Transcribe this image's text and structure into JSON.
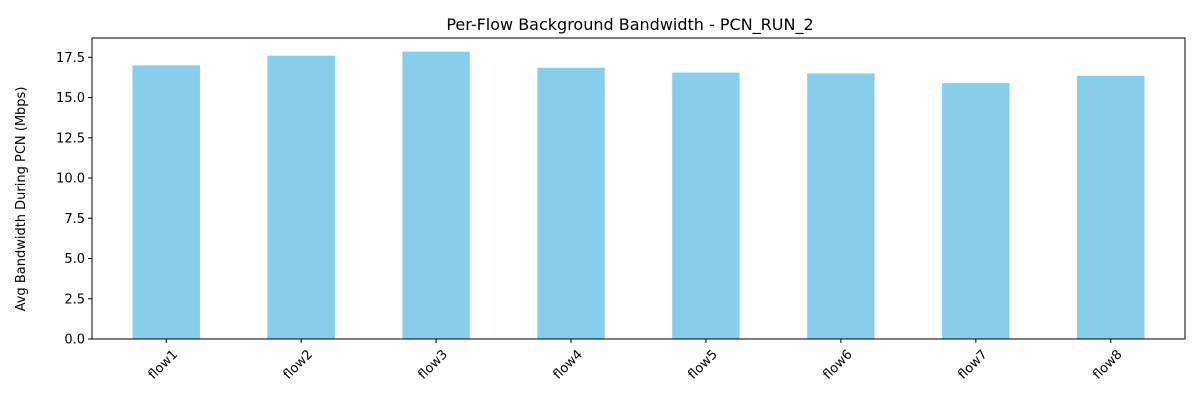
{
  "chart_data": {
    "type": "bar",
    "title": "Per-Flow Background Bandwidth - PCN_RUN_2",
    "xlabel": "",
    "ylabel": "Avg Bandwidth During PCN (Mbps)",
    "categories": [
      "flow1",
      "flow2",
      "flow3",
      "flow4",
      "flow5",
      "flow6",
      "flow7",
      "flow8"
    ],
    "values": [
      17.0,
      17.6,
      17.85,
      16.85,
      16.55,
      16.5,
      15.9,
      16.35
    ],
    "ylim": [
      0,
      18.7
    ],
    "yticks": [
      0.0,
      2.5,
      5.0,
      7.5,
      10.0,
      12.5,
      15.0,
      17.5
    ],
    "ytick_labels": [
      "0.0",
      "2.5",
      "5.0",
      "7.5",
      "10.0",
      "12.5",
      "15.0",
      "17.5"
    ],
    "bar_color": "#87ceeb",
    "grid": false,
    "legend": "none"
  }
}
